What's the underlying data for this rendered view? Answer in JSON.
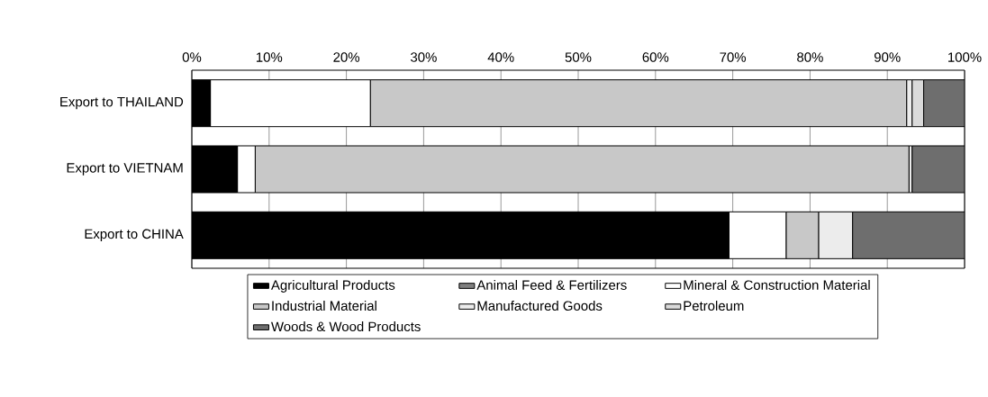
{
  "chart_data": {
    "type": "bar",
    "orientation": "horizontal",
    "stacked": true,
    "categories": [
      "Export to THAILAND",
      "Export to VIETNAM",
      "Export to CHINA"
    ],
    "series": [
      {
        "name": "Agricultural Products",
        "color": "#000000",
        "values": [
          2.4,
          5.9,
          69.5
        ]
      },
      {
        "name": "Animal Feed & Fertilizers",
        "color": "#808080",
        "values": [
          0,
          0,
          0
        ]
      },
      {
        "name": "Mineral & Construction Material",
        "color": "#ffffff",
        "values": [
          20.7,
          2.3,
          7.4
        ]
      },
      {
        "name": "Industrial Material",
        "color": "#c8c8c8",
        "values": [
          69.4,
          84.6,
          4.2
        ]
      },
      {
        "name": "Manufactured Goods",
        "color": "#ececec",
        "values": [
          0.7,
          0.4,
          4.4
        ]
      },
      {
        "name": "Petroleum",
        "color": "#dadada",
        "values": [
          1.5,
          0,
          0
        ]
      },
      {
        "name": "Woods & Wood Products",
        "color": "#6e6e6e",
        "values": [
          5.3,
          6.8,
          14.5
        ]
      }
    ],
    "xlim": [
      0,
      100
    ],
    "xticks": [
      {
        "value": 0,
        "label": "0%"
      },
      {
        "value": 10,
        "label": "10%"
      },
      {
        "value": 20,
        "label": "20%"
      },
      {
        "value": 30,
        "label": "30%"
      },
      {
        "value": 40,
        "label": "40%"
      },
      {
        "value": 50,
        "label": "50%"
      },
      {
        "value": 60,
        "label": "60%"
      },
      {
        "value": 70,
        "label": "70%"
      },
      {
        "value": 80,
        "label": "80%"
      },
      {
        "value": 90,
        "label": "90%"
      },
      {
        "value": 100,
        "label": "100%"
      }
    ],
    "grid": "x",
    "legend": "bottom"
  }
}
